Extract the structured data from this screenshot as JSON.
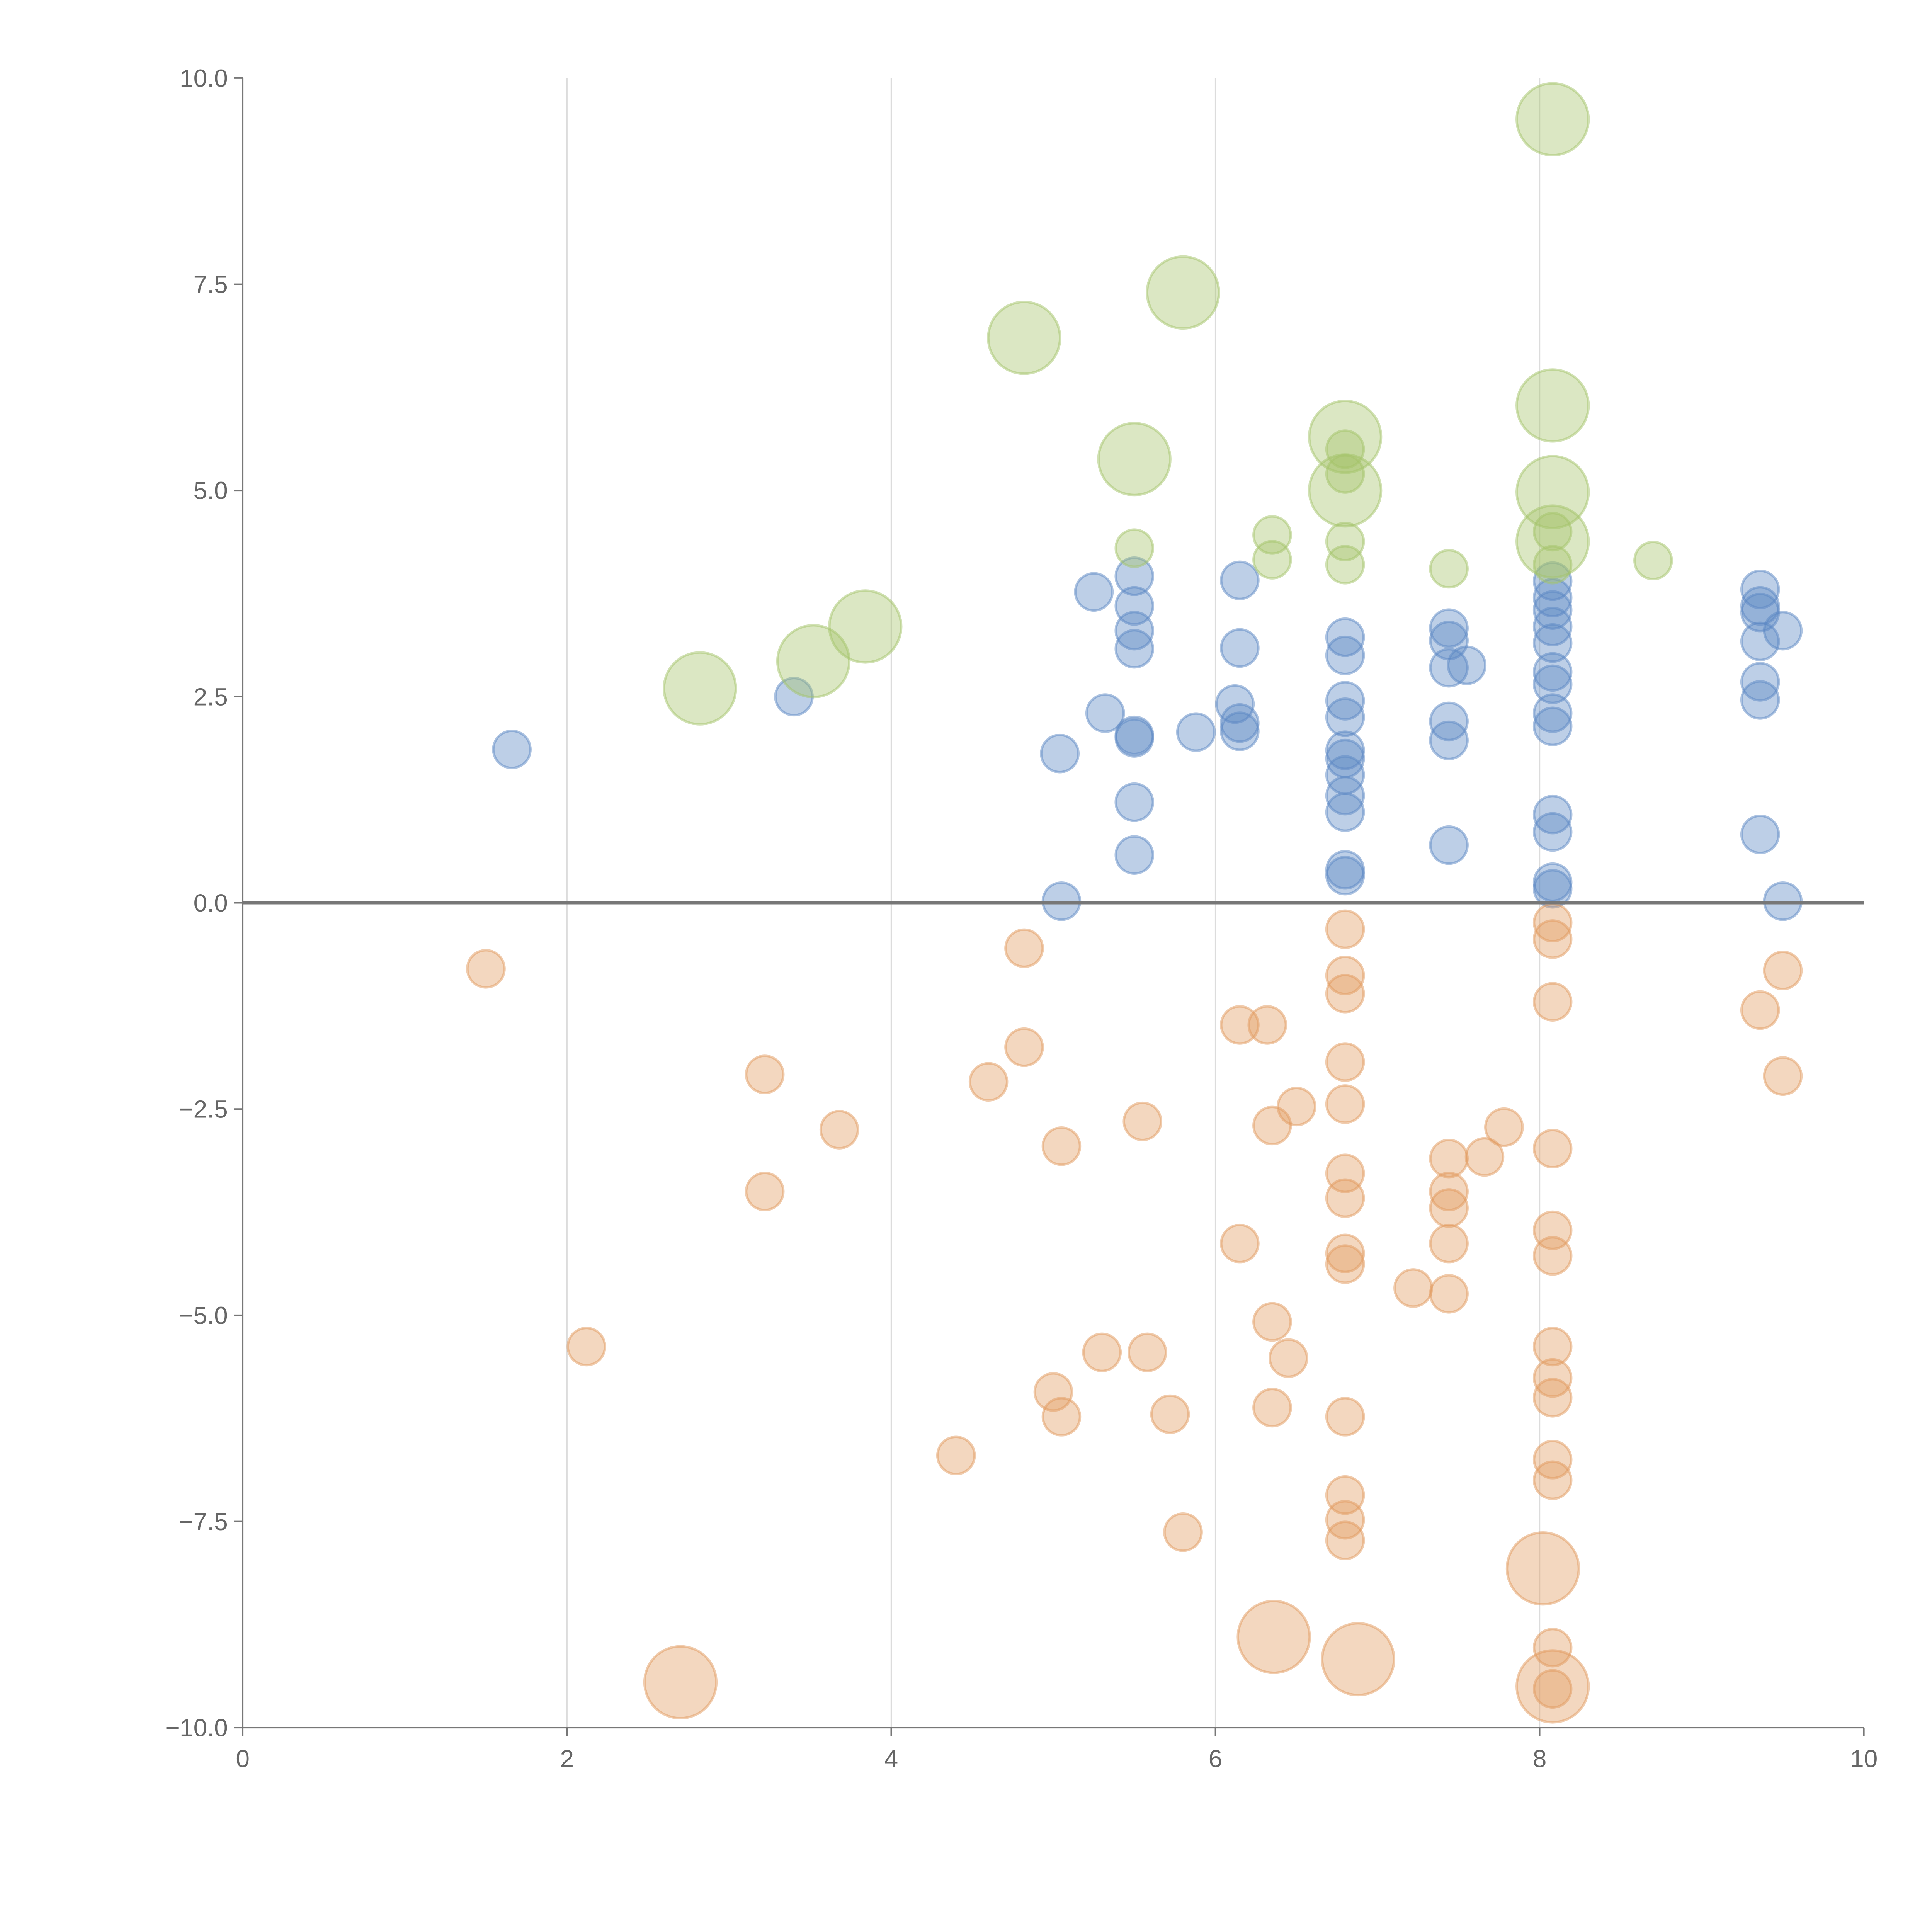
{
  "chart_data": {
    "type": "scatter",
    "title": "",
    "xlabel": "",
    "ylabel": "",
    "xlim": [
      0,
      10
    ],
    "ylim": [
      -10,
      10
    ],
    "grid": "vertical",
    "x_ticks": [
      "0",
      "2",
      "4",
      "6",
      "8",
      "10"
    ],
    "y_ticks": [
      "10.0",
      "7.5",
      "5.0",
      "2.5",
      "0.0",
      "−2.5",
      "−5.0",
      "−7.5",
      "−10.0"
    ],
    "colors": {
      "blue": "#5b88c4",
      "green": "#a4c46a",
      "orange": "#e29a5e"
    },
    "series": [
      {
        "name": "blue",
        "color": "#5b88c4",
        "size": "small",
        "points": [
          [
            1.66,
            1.86
          ],
          [
            3.4,
            2.5
          ],
          [
            5.04,
            1.81
          ],
          [
            5.05,
            0.02
          ],
          [
            5.25,
            3.77
          ],
          [
            5.32,
            2.3
          ],
          [
            5.5,
            3.96
          ],
          [
            5.5,
            3.6
          ],
          [
            5.5,
            3.3
          ],
          [
            5.5,
            3.08
          ],
          [
            5.5,
            2.03
          ],
          [
            5.5,
            2.0
          ],
          [
            5.5,
            1.22
          ],
          [
            5.5,
            0.58
          ],
          [
            5.88,
            2.07
          ],
          [
            6.15,
            3.91
          ],
          [
            6.15,
            3.09
          ],
          [
            6.12,
            2.41
          ],
          [
            6.15,
            2.18
          ],
          [
            6.15,
            2.08
          ],
          [
            6.8,
            3.22
          ],
          [
            6.8,
            3.0
          ],
          [
            6.8,
            2.45
          ],
          [
            6.8,
            2.25
          ],
          [
            6.8,
            1.85
          ],
          [
            6.8,
            1.75
          ],
          [
            6.8,
            1.55
          ],
          [
            6.8,
            1.3
          ],
          [
            6.8,
            1.1
          ],
          [
            6.8,
            0.4
          ],
          [
            6.8,
            0.33
          ],
          [
            7.44,
            3.33
          ],
          [
            7.44,
            3.18
          ],
          [
            7.44,
            2.85
          ],
          [
            7.44,
            2.2
          ],
          [
            7.44,
            1.97
          ],
          [
            7.44,
            0.7
          ],
          [
            7.55,
            2.88
          ],
          [
            8.08,
            3.9
          ],
          [
            8.08,
            3.7
          ],
          [
            8.08,
            3.55
          ],
          [
            8.08,
            3.35
          ],
          [
            8.08,
            3.15
          ],
          [
            8.08,
            2.8
          ],
          [
            8.08,
            2.65
          ],
          [
            8.08,
            2.3
          ],
          [
            8.08,
            2.14
          ],
          [
            8.08,
            1.07
          ],
          [
            8.08,
            0.86
          ],
          [
            8.08,
            0.25
          ],
          [
            8.08,
            0.17
          ],
          [
            9.36,
            3.8
          ],
          [
            9.36,
            3.6
          ],
          [
            9.36,
            3.52
          ],
          [
            9.36,
            3.17
          ],
          [
            9.36,
            2.68
          ],
          [
            9.36,
            2.46
          ],
          [
            9.36,
            0.83
          ],
          [
            9.5,
            3.3
          ],
          [
            9.5,
            0.02
          ]
        ]
      },
      {
        "name": "green",
        "color": "#a4c46a",
        "size": "small",
        "points": [
          [
            5.5,
            4.3
          ],
          [
            6.35,
            4.46
          ],
          [
            6.35,
            4.16
          ],
          [
            6.8,
            5.5
          ],
          [
            6.8,
            5.2
          ],
          [
            6.8,
            4.38
          ],
          [
            6.8,
            4.1
          ],
          [
            7.44,
            4.05
          ],
          [
            8.08,
            4.5
          ],
          [
            8.08,
            4.1
          ],
          [
            8.7,
            4.15
          ]
        ]
      },
      {
        "name": "green-large",
        "color": "#a4c46a",
        "size": "large",
        "points": [
          [
            2.82,
            2.6
          ],
          [
            3.52,
            2.93
          ],
          [
            3.84,
            3.35
          ],
          [
            4.82,
            6.85
          ],
          [
            5.8,
            7.4
          ],
          [
            5.5,
            5.38
          ],
          [
            6.8,
            5.65
          ],
          [
            6.8,
            5.0
          ],
          [
            8.08,
            9.5
          ],
          [
            8.08,
            6.03
          ],
          [
            8.08,
            4.98
          ],
          [
            8.08,
            4.38
          ]
        ]
      },
      {
        "name": "orange",
        "color": "#e29a5e",
        "size": "small",
        "points": [
          [
            1.5,
            -0.8
          ],
          [
            2.12,
            -5.38
          ],
          [
            3.22,
            -2.08
          ],
          [
            3.22,
            -3.5
          ],
          [
            3.68,
            -2.75
          ],
          [
            4.4,
            -6.7
          ],
          [
            4.6,
            -2.17
          ],
          [
            4.82,
            -0.55
          ],
          [
            4.82,
            -1.75
          ],
          [
            5.0,
            -5.93
          ],
          [
            5.05,
            -2.95
          ],
          [
            5.05,
            -6.23
          ],
          [
            5.3,
            -5.45
          ],
          [
            5.55,
            -2.65
          ],
          [
            5.58,
            -5.45
          ],
          [
            5.72,
            -6.2
          ],
          [
            5.8,
            -7.63
          ],
          [
            6.15,
            -1.48
          ],
          [
            6.15,
            -4.13
          ],
          [
            6.32,
            -1.48
          ],
          [
            6.35,
            -2.7
          ],
          [
            6.35,
            -5.08
          ],
          [
            6.35,
            -6.12
          ],
          [
            6.45,
            -5.52
          ],
          [
            6.5,
            -2.47
          ],
          [
            6.8,
            -0.32
          ],
          [
            6.8,
            -0.88
          ],
          [
            6.8,
            -1.1
          ],
          [
            6.8,
            -1.93
          ],
          [
            6.8,
            -2.44
          ],
          [
            6.8,
            -3.28
          ],
          [
            6.8,
            -3.58
          ],
          [
            6.8,
            -4.25
          ],
          [
            6.8,
            -4.38
          ],
          [
            6.8,
            -6.23
          ],
          [
            6.8,
            -7.18
          ],
          [
            6.8,
            -7.48
          ],
          [
            6.8,
            -7.73
          ],
          [
            7.22,
            -4.67
          ],
          [
            7.44,
            -3.1
          ],
          [
            7.44,
            -3.5
          ],
          [
            7.44,
            -3.7
          ],
          [
            7.44,
            -4.13
          ],
          [
            7.44,
            -4.74
          ],
          [
            7.66,
            -3.08
          ],
          [
            7.78,
            -2.72
          ],
          [
            8.08,
            -0.24
          ],
          [
            8.08,
            -0.44
          ],
          [
            8.08,
            -1.2
          ],
          [
            8.08,
            -2.98
          ],
          [
            8.08,
            -3.97
          ],
          [
            8.08,
            -4.28
          ],
          [
            8.08,
            -5.38
          ],
          [
            8.08,
            -5.76
          ],
          [
            8.08,
            -6.0
          ],
          [
            8.08,
            -6.75
          ],
          [
            8.08,
            -7.0
          ],
          [
            8.08,
            -9.03
          ],
          [
            8.08,
            -9.53
          ],
          [
            9.36,
            -1.3
          ],
          [
            9.5,
            -0.82
          ],
          [
            9.5,
            -2.1
          ]
        ]
      },
      {
        "name": "orange-large",
        "color": "#e29a5e",
        "size": "large",
        "points": [
          [
            2.7,
            -9.45
          ],
          [
            6.36,
            -8.9
          ],
          [
            6.88,
            -9.17
          ],
          [
            8.02,
            -8.07
          ],
          [
            8.08,
            -9.5
          ]
        ]
      }
    ]
  }
}
